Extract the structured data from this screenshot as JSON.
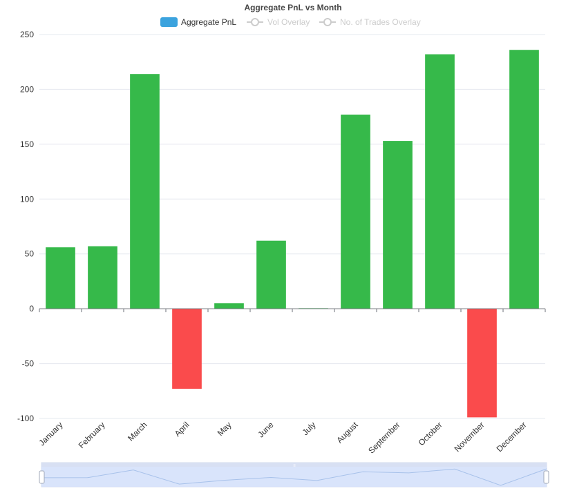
{
  "chart_data": {
    "type": "bar",
    "title": "Aggregate PnL vs Month",
    "categories": [
      "January",
      "February",
      "March",
      "April",
      "May",
      "June",
      "July",
      "August",
      "September",
      "October",
      "November",
      "December"
    ],
    "series": [
      {
        "name": "Aggregate PnL",
        "values": [
          56,
          57,
          214,
          -73,
          5,
          62,
          0.5,
          177,
          153,
          232,
          -99,
          236
        ]
      }
    ],
    "legend": [
      {
        "label": "Aggregate PnL",
        "active": true
      },
      {
        "label": "Vol Overlay",
        "active": false
      },
      {
        "label": "No. of Trades Overlay",
        "active": false
      }
    ],
    "y_ticks": [
      "250",
      "200",
      "150",
      "100",
      "50",
      "0",
      "-50",
      "-100"
    ],
    "ylim": [
      -100,
      250
    ],
    "grid": true,
    "legend_position": "top-center",
    "colors": {
      "positive": "#36b94a",
      "negative": "#fa4b4c",
      "legend_active": "#3ba3de",
      "legend_inactive": "#cccccc"
    },
    "data_zoom": {
      "preview": [
        56,
        57,
        214,
        -73,
        5,
        62,
        0.5,
        177,
        153,
        232,
        -99,
        236
      ],
      "start_percent": 0,
      "end_percent": 100
    }
  }
}
